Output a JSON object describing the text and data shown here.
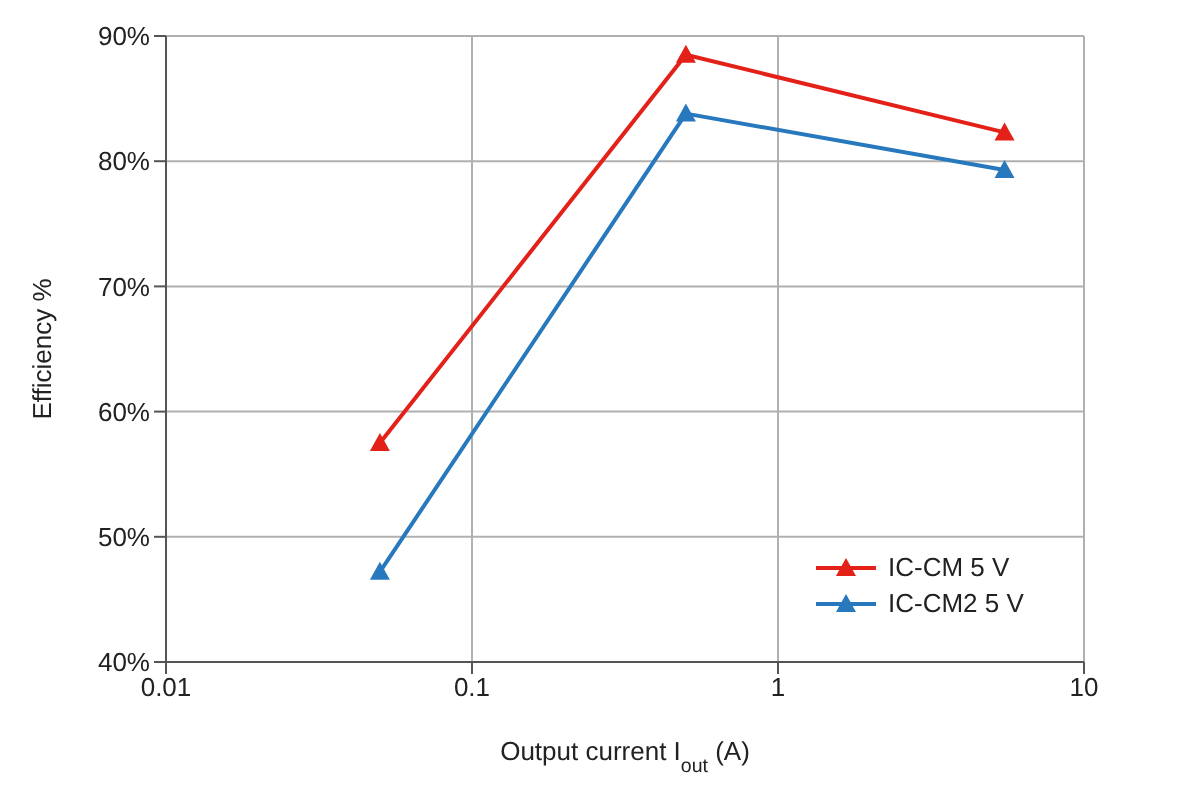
{
  "chart_data": {
    "type": "line",
    "xlabel": "Output current I$_{out}$ (A)",
    "ylabel": "Efficiency %",
    "log": "x",
    "xlim": [
      0.01,
      10
    ],
    "xticks": [
      0.01,
      0.1,
      1,
      10
    ],
    "ylim": [
      40,
      90
    ],
    "yticks": [
      {
        "value": 40,
        "label": "40%"
      },
      {
        "value": 50,
        "label": "50%"
      },
      {
        "value": 60,
        "label": "60%"
      },
      {
        "value": 70,
        "label": "70%"
      },
      {
        "value": 80,
        "label": "80%"
      },
      {
        "value": 90,
        "label": "90%"
      }
    ],
    "grid": true,
    "legend": "bottom right",
    "marker": "triangle",
    "line_style": "solid",
    "x": [
      0.05,
      0.5,
      5.5
    ],
    "series": [
      {
        "name": "IC-CM 5 V",
        "color": "#e32119",
        "values": [
          57.5,
          88.5,
          82.3
        ]
      },
      {
        "name": "IC-CM2 5 V",
        "color": "#2878bd",
        "values": [
          47.2,
          83.8,
          79.3
        ]
      }
    ]
  }
}
